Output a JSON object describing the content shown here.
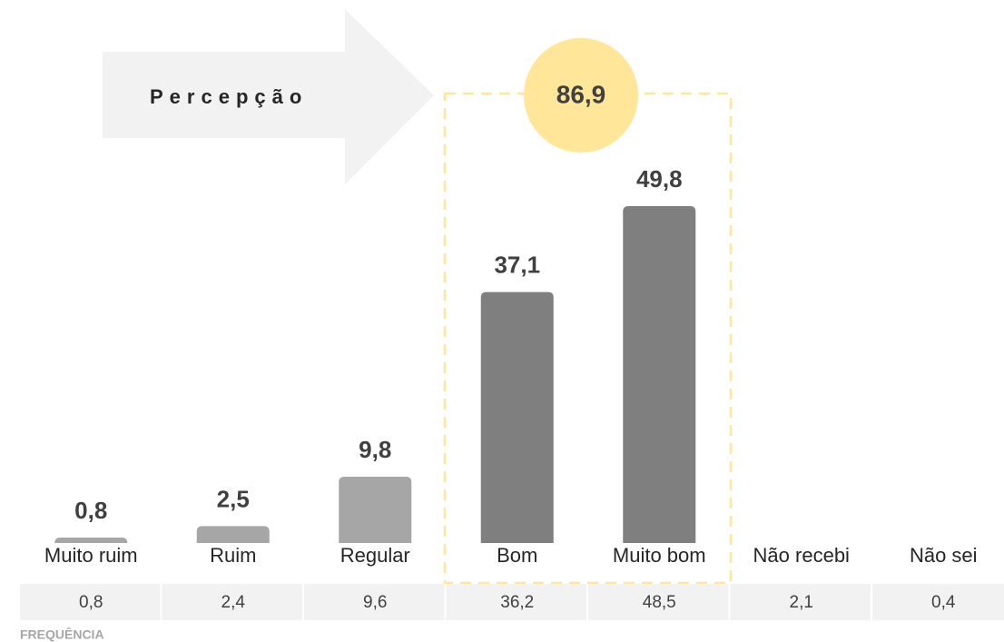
{
  "chart_data": {
    "type": "bar",
    "categories": [
      "Muito ruim",
      "Ruim",
      "Regular",
      "Bom",
      "Muito bom",
      "Não recebi",
      "Não sei"
    ],
    "values": [
      0.8,
      2.5,
      9.8,
      37.1,
      49.8,
      null,
      null
    ],
    "value_labels": [
      "0,8",
      "2,5",
      "9,8",
      "37,1",
      "49,8",
      null,
      null
    ],
    "colors": [
      "#a6a6a6",
      "#a6a6a6",
      "#a6a6a6",
      "#7f7f7f",
      "#7f7f7f",
      null,
      null
    ],
    "highlight_label": "Percepção",
    "highlight_total": "86,9",
    "table_label": "FREQUÊNCIA",
    "frequency": [
      "0,8",
      "2,4",
      "9,6",
      "36,2",
      "48,5",
      "2,1",
      "0,4"
    ]
  }
}
